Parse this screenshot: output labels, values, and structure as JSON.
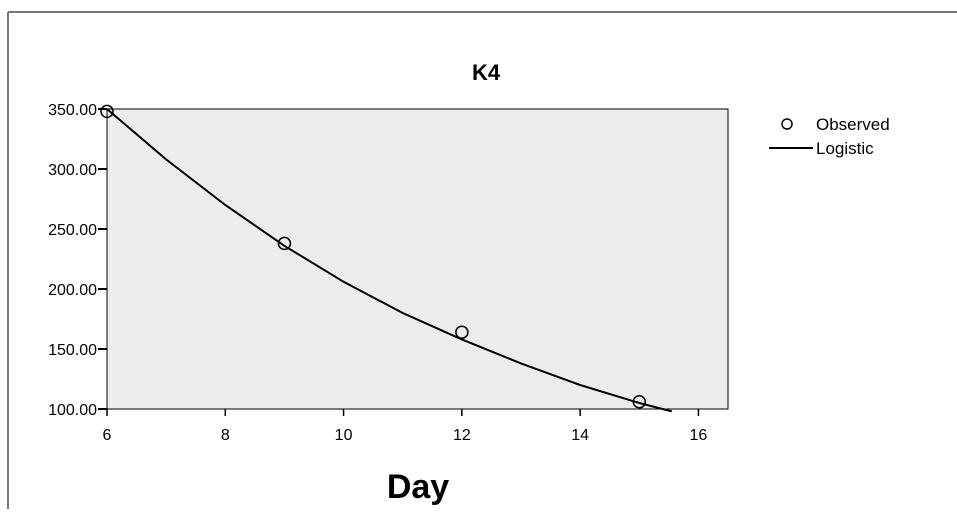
{
  "chart_data": {
    "type": "scatter",
    "title": "K4",
    "xlabel": "Day",
    "ylabel": "",
    "xlim": [
      6,
      16.5
    ],
    "ylim": [
      100,
      350
    ],
    "x_ticks": [
      6,
      8,
      10,
      12,
      14,
      16
    ],
    "y_ticks": [
      100,
      150,
      200,
      250,
      300,
      350
    ],
    "x_tick_labels": [
      "6",
      "8",
      "10",
      "12",
      "14",
      "16"
    ],
    "y_tick_labels": [
      "100.00",
      "150.00",
      "200.00",
      "250.00",
      "300.00",
      "350.00"
    ],
    "grid": false,
    "legend_position": "top-right",
    "legend": [
      {
        "label": "Observed",
        "marker": "circle"
      },
      {
        "label": "Logistic",
        "marker": "line"
      }
    ],
    "observed": {
      "name": "Observed",
      "x": [
        6,
        9,
        12,
        15
      ],
      "y": [
        348,
        238,
        164,
        106
      ]
    },
    "fit": {
      "name": "Logistic",
      "x": [
        6,
        7,
        8,
        9,
        10,
        11,
        12,
        13,
        14,
        15,
        15.55
      ],
      "y": [
        350,
        308,
        270,
        236,
        206,
        180,
        158,
        138,
        120,
        105,
        98
      ]
    },
    "colors": {
      "plot_background": "#ececec",
      "line": "#000000",
      "marker": "#000000"
    }
  }
}
